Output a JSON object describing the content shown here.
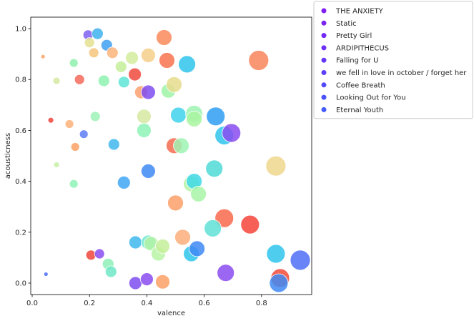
{
  "chart_data": {
    "type": "scatter",
    "title": "",
    "xlabel": "valence",
    "ylabel": "acousticness",
    "xlim": [
      -0.005,
      0.975
    ],
    "ylim": [
      -0.045,
      1.045
    ],
    "xticks": [
      0.0,
      0.2,
      0.4,
      0.6,
      0.8
    ],
    "yticks": [
      0.0,
      0.2,
      0.4,
      0.6,
      0.8,
      1.0
    ],
    "xtick_labels": [
      "0.0",
      "0.2",
      "0.4",
      "0.6",
      "0.8"
    ],
    "ytick_labels": [
      "0.0",
      "0.2",
      "0.4",
      "0.6",
      "0.8",
      "1.0"
    ],
    "grid": false,
    "legend_position": "outside-top-right",
    "legend": [
      {
        "label": "THE ANXIETY",
        "color": "#7f1ff1"
      },
      {
        "label": "Static",
        "color": "#7a24f2"
      },
      {
        "label": "Pretty Girl",
        "color": "#7329f4"
      },
      {
        "label": "ARDIPITHECUS",
        "color": "#6c2ff5"
      },
      {
        "label": "Falling for U",
        "color": "#6437f6"
      },
      {
        "label": "we fell in love in october / forget her",
        "color": "#5c40f7"
      },
      {
        "label": "Coffee Breath",
        "color": "#5449f8"
      },
      {
        "label": "Looking Out for You",
        "color": "#4c52f9"
      },
      {
        "label": "Eternal Youth",
        "color": "#445cf9"
      }
    ],
    "points": [
      {
        "x": 0.195,
        "y": 0.975,
        "s": 7,
        "c": "#7f62f2"
      },
      {
        "x": 0.228,
        "y": 0.98,
        "s": 8,
        "c": "#3fb2ee"
      },
      {
        "x": 0.26,
        "y": 0.935,
        "s": 8,
        "c": "#3fa0f2"
      },
      {
        "x": 0.2,
        "y": 0.945,
        "s": 7,
        "c": "#e3e08e"
      },
      {
        "x": 0.215,
        "y": 0.905,
        "s": 7,
        "c": "#f7c47d"
      },
      {
        "x": 0.038,
        "y": 0.89,
        "s": 3,
        "c": "#fba266"
      },
      {
        "x": 0.145,
        "y": 0.865,
        "s": 6,
        "c": "#8ef0ae"
      },
      {
        "x": 0.165,
        "y": 0.8,
        "s": 7,
        "c": "#f56a5a"
      },
      {
        "x": 0.085,
        "y": 0.795,
        "s": 5,
        "c": "#d6e7a0"
      },
      {
        "x": 0.25,
        "y": 0.795,
        "s": 8,
        "c": "#8ef2b0"
      },
      {
        "x": 0.28,
        "y": 0.905,
        "s": 8,
        "c": "#fbb47c"
      },
      {
        "x": 0.31,
        "y": 0.85,
        "s": 8,
        "c": "#c6ee9a"
      },
      {
        "x": 0.348,
        "y": 0.885,
        "s": 9,
        "c": "#d4ec9e"
      },
      {
        "x": 0.32,
        "y": 0.79,
        "s": 8,
        "c": "#5fe4d6"
      },
      {
        "x": 0.358,
        "y": 0.82,
        "s": 9,
        "c": "#f04a3e"
      },
      {
        "x": 0.38,
        "y": 0.75,
        "s": 9,
        "c": "#fba070"
      },
      {
        "x": 0.405,
        "y": 0.895,
        "s": 10,
        "c": "#f6cf8a"
      },
      {
        "x": 0.405,
        "y": 0.75,
        "s": 10,
        "c": "#7f4cee"
      },
      {
        "x": 0.46,
        "y": 0.965,
        "s": 11,
        "c": "#f98a5a"
      },
      {
        "x": 0.47,
        "y": 0.875,
        "s": 11,
        "c": "#f8734f"
      },
      {
        "x": 0.475,
        "y": 0.755,
        "s": 10,
        "c": "#9ff3a8"
      },
      {
        "x": 0.495,
        "y": 0.78,
        "s": 11,
        "c": "#e6dc8e"
      },
      {
        "x": 0.54,
        "y": 0.86,
        "s": 12,
        "c": "#2fc4ec"
      },
      {
        "x": 0.79,
        "y": 0.875,
        "s": 14,
        "c": "#f8845a"
      },
      {
        "x": 0.065,
        "y": 0.64,
        "s": 4,
        "c": "#f0453c"
      },
      {
        "x": 0.13,
        "y": 0.625,
        "s": 6,
        "c": "#fbb27a"
      },
      {
        "x": 0.15,
        "y": 0.535,
        "s": 6,
        "c": "#fba066"
      },
      {
        "x": 0.18,
        "y": 0.585,
        "s": 6,
        "c": "#5f7cf5"
      },
      {
        "x": 0.22,
        "y": 0.655,
        "s": 7,
        "c": "#9ef2b6"
      },
      {
        "x": 0.285,
        "y": 0.545,
        "s": 8,
        "c": "#3fb8ef"
      },
      {
        "x": 0.39,
        "y": 0.655,
        "s": 10,
        "c": "#d6e7a0"
      },
      {
        "x": 0.39,
        "y": 0.6,
        "s": 10,
        "c": "#8ef3b6"
      },
      {
        "x": 0.495,
        "y": 0.54,
        "s": 11,
        "c": "#f56a4e"
      },
      {
        "x": 0.52,
        "y": 0.54,
        "s": 11,
        "c": "#9ff3b4"
      },
      {
        "x": 0.51,
        "y": 0.66,
        "s": 11,
        "c": "#3fd2ec"
      },
      {
        "x": 0.565,
        "y": 0.665,
        "s": 12,
        "c": "#9ff3b4"
      },
      {
        "x": 0.565,
        "y": 0.645,
        "s": 11,
        "c": "#a9f5a0"
      },
      {
        "x": 0.64,
        "y": 0.655,
        "s": 13,
        "c": "#2f9ef2"
      },
      {
        "x": 0.67,
        "y": 0.58,
        "s": 13,
        "c": "#2fc4ec"
      },
      {
        "x": 0.695,
        "y": 0.59,
        "s": 13,
        "c": "#8a4cf0"
      },
      {
        "x": 0.85,
        "y": 0.46,
        "s": 14,
        "c": "#eed78c"
      },
      {
        "x": 0.085,
        "y": 0.465,
        "s": 4,
        "c": "#c7f0a6"
      },
      {
        "x": 0.145,
        "y": 0.39,
        "s": 6,
        "c": "#8ef2b6"
      },
      {
        "x": 0.32,
        "y": 0.395,
        "s": 9,
        "c": "#3fa6f3"
      },
      {
        "x": 0.405,
        "y": 0.44,
        "s": 10,
        "c": "#3f8af3"
      },
      {
        "x": 0.555,
        "y": 0.39,
        "s": 11,
        "c": "#b3f3a6"
      },
      {
        "x": 0.565,
        "y": 0.4,
        "s": 11,
        "c": "#3fd8e6"
      },
      {
        "x": 0.58,
        "y": 0.35,
        "s": 11,
        "c": "#a9f5a8"
      },
      {
        "x": 0.5,
        "y": 0.315,
        "s": 11,
        "c": "#fba06a"
      },
      {
        "x": 0.635,
        "y": 0.45,
        "s": 12,
        "c": "#4fdad6"
      },
      {
        "x": 0.67,
        "y": 0.255,
        "s": 13,
        "c": "#f8694c"
      },
      {
        "x": 0.76,
        "y": 0.23,
        "s": 13,
        "c": "#f5443a"
      },
      {
        "x": 0.525,
        "y": 0.18,
        "s": 11,
        "c": "#fbae7a"
      },
      {
        "x": 0.63,
        "y": 0.215,
        "s": 12,
        "c": "#5fe0d6"
      },
      {
        "x": 0.36,
        "y": 0.16,
        "s": 9,
        "c": "#3fb8ef"
      },
      {
        "x": 0.405,
        "y": 0.16,
        "s": 10,
        "c": "#6fe8d0"
      },
      {
        "x": 0.415,
        "y": 0.155,
        "s": 10,
        "c": "#b3f3a6"
      },
      {
        "x": 0.44,
        "y": 0.115,
        "s": 10,
        "c": "#b9f3a6"
      },
      {
        "x": 0.455,
        "y": 0.145,
        "s": 10,
        "c": "#c6ee9a"
      },
      {
        "x": 0.555,
        "y": 0.115,
        "s": 11,
        "c": "#2fc6ec"
      },
      {
        "x": 0.575,
        "y": 0.135,
        "s": 11,
        "c": "#3f8af3"
      },
      {
        "x": 0.205,
        "y": 0.11,
        "s": 7,
        "c": "#f0453c"
      },
      {
        "x": 0.235,
        "y": 0.115,
        "s": 7,
        "c": "#8a4cf0"
      },
      {
        "x": 0.265,
        "y": 0.075,
        "s": 8,
        "c": "#8ef0b6"
      },
      {
        "x": 0.275,
        "y": 0.045,
        "s": 8,
        "c": "#6fe8c6"
      },
      {
        "x": 0.048,
        "y": 0.035,
        "s": 3,
        "c": "#4f6ff6"
      },
      {
        "x": 0.36,
        "y": 0.0,
        "s": 9,
        "c": "#7f4cee"
      },
      {
        "x": 0.4,
        "y": 0.015,
        "s": 9,
        "c": "#8a4cf0"
      },
      {
        "x": 0.455,
        "y": 0.005,
        "s": 10,
        "c": "#fba066"
      },
      {
        "x": 0.675,
        "y": 0.04,
        "s": 12,
        "c": "#8a4cf0"
      },
      {
        "x": 0.85,
        "y": 0.115,
        "s": 13,
        "c": "#2fc4ec"
      },
      {
        "x": 0.865,
        "y": 0.02,
        "s": 13,
        "c": "#f24b3a"
      },
      {
        "x": 0.86,
        "y": 0.0,
        "s": 13,
        "c": "#3f8af3"
      },
      {
        "x": 0.935,
        "y": 0.09,
        "s": 14,
        "c": "#4f6ff6"
      }
    ]
  }
}
